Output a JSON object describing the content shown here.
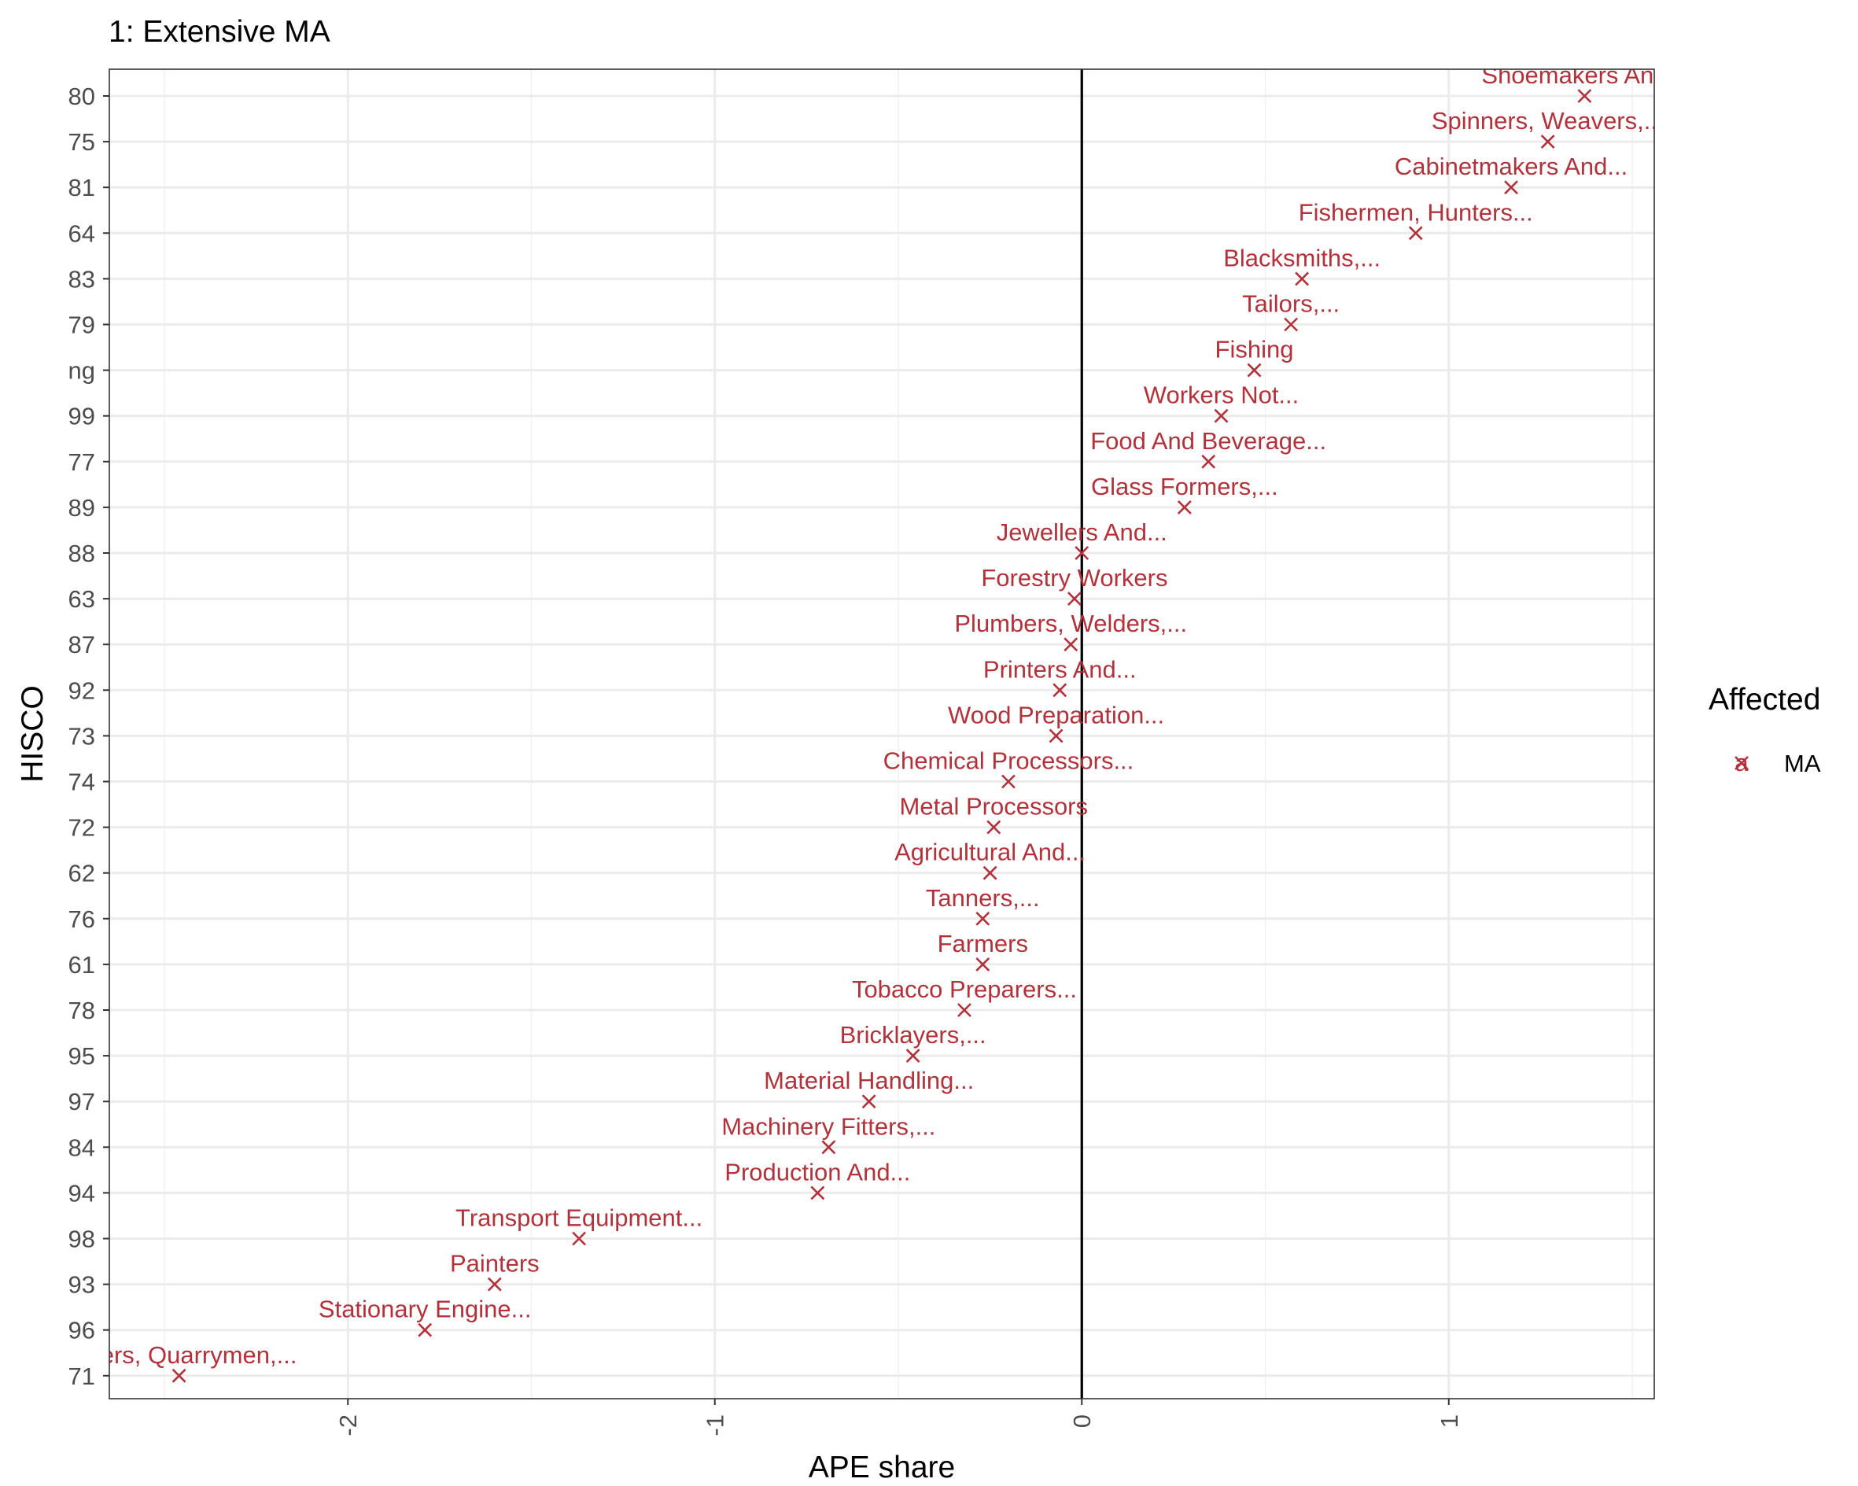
{
  "chart_data": {
    "type": "scatter",
    "title": "1: Extensive MA",
    "xlabel": "APE share",
    "ylabel": "HISCO",
    "xlim": [
      -2.65,
      1.56
    ],
    "xticks": [
      -2,
      -1,
      0,
      1
    ],
    "xtick_labels": [
      "-2",
      "-1",
      "0",
      "1"
    ],
    "vline_x": 0,
    "grid": true,
    "legend": {
      "title": "Affected",
      "position": "right",
      "entries": [
        {
          "symbol_text": "a",
          "label": "MA"
        }
      ]
    },
    "series_color": "#b2323b",
    "series": [
      {
        "name": "MA",
        "points": [
          {
            "hisco": "80",
            "x": 1.37,
            "label": "Shoemakers And..."
          },
          {
            "hisco": "75",
            "x": 1.27,
            "label": "Spinners, Weavers,..."
          },
          {
            "hisco": "81",
            "x": 1.17,
            "label": "Cabinetmakers And..."
          },
          {
            "hisco": "64",
            "x": 0.91,
            "label": "Fishermen, Hunters..."
          },
          {
            "hisco": "83",
            "x": 0.6,
            "label": "Blacksmiths,..."
          },
          {
            "hisco": "79",
            "x": 0.57,
            "label": "Tailors,..."
          },
          {
            "hisco": "ng",
            "x": 0.47,
            "label": "Fishing"
          },
          {
            "hisco": "99",
            "x": 0.38,
            "label": "Workers Not..."
          },
          {
            "hisco": "77",
            "x": 0.345,
            "label": "Food And Beverage..."
          },
          {
            "hisco": "89",
            "x": 0.28,
            "label": "Glass Formers,..."
          },
          {
            "hisco": "88",
            "x": 0.0,
            "label": "Jewellers And..."
          },
          {
            "hisco": "63",
            "x": -0.02,
            "label": "Forestry Workers"
          },
          {
            "hisco": "87",
            "x": -0.03,
            "label": "Plumbers, Welders,..."
          },
          {
            "hisco": "92",
            "x": -0.06,
            "label": "Printers And..."
          },
          {
            "hisco": "73",
            "x": -0.07,
            "label": "Wood Preparation..."
          },
          {
            "hisco": "74",
            "x": -0.2,
            "label": "Chemical Processors..."
          },
          {
            "hisco": "72",
            "x": -0.24,
            "label": "Metal Processors"
          },
          {
            "hisco": "62",
            "x": -0.25,
            "label": "Agricultural And..."
          },
          {
            "hisco": "76",
            "x": -0.27,
            "label": "Tanners,..."
          },
          {
            "hisco": "61",
            "x": -0.27,
            "label": "Farmers"
          },
          {
            "hisco": "78",
            "x": -0.32,
            "label": "Tobacco Preparers..."
          },
          {
            "hisco": "95",
            "x": -0.46,
            "label": "Bricklayers,..."
          },
          {
            "hisco": "97",
            "x": -0.58,
            "label": "Material Handling..."
          },
          {
            "hisco": "84",
            "x": -0.69,
            "label": "Machinery Fitters,..."
          },
          {
            "hisco": "94",
            "x": -0.72,
            "label": "Production And..."
          },
          {
            "hisco": "98",
            "x": -1.37,
            "label": "Transport Equipment..."
          },
          {
            "hisco": "93",
            "x": -1.6,
            "label": "Painters"
          },
          {
            "hisco": "96",
            "x": -1.79,
            "label": "Stationary Engine..."
          },
          {
            "hisco": "71",
            "x": -2.46,
            "label": "Miners, Quarrymen,..."
          }
        ]
      }
    ]
  }
}
